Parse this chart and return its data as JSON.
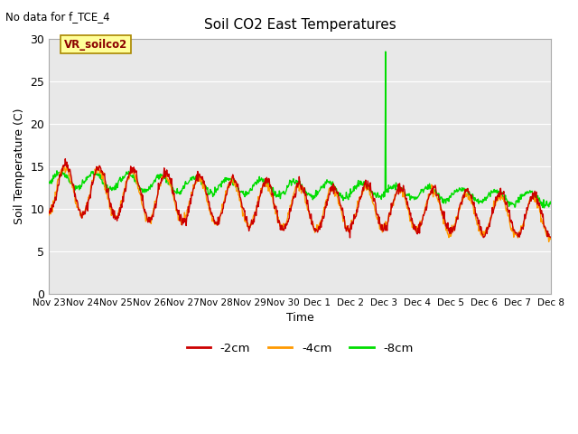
{
  "title": "Soil CO2 East Temperatures",
  "subtitle": "No data for f_TCE_4",
  "xlabel": "Time",
  "ylabel": "Soil Temperature (C)",
  "ylim": [
    0,
    30
  ],
  "yticks": [
    0,
    5,
    10,
    15,
    20,
    25,
    30
  ],
  "color_2cm": "#cc0000",
  "color_4cm": "#ff9900",
  "color_8cm": "#00dd00",
  "label_2cm": "-2cm",
  "label_4cm": "-4cm",
  "label_8cm": "-8cm",
  "sensor_label": "VR_soilco2",
  "bg_color": "#e8e8e8",
  "x_tick_labels": [
    "Nov 23",
    "Nov 24",
    "Nov 25",
    "Nov 26",
    "Nov 27",
    "Nov 28",
    "Nov 29",
    "Nov 30",
    "Dec 1",
    "Dec 2",
    "Dec 3",
    "Dec 4",
    "Dec 5",
    "Dec 6",
    "Dec 7",
    "Dec 8"
  ],
  "n_points": 960,
  "n_days": 15
}
